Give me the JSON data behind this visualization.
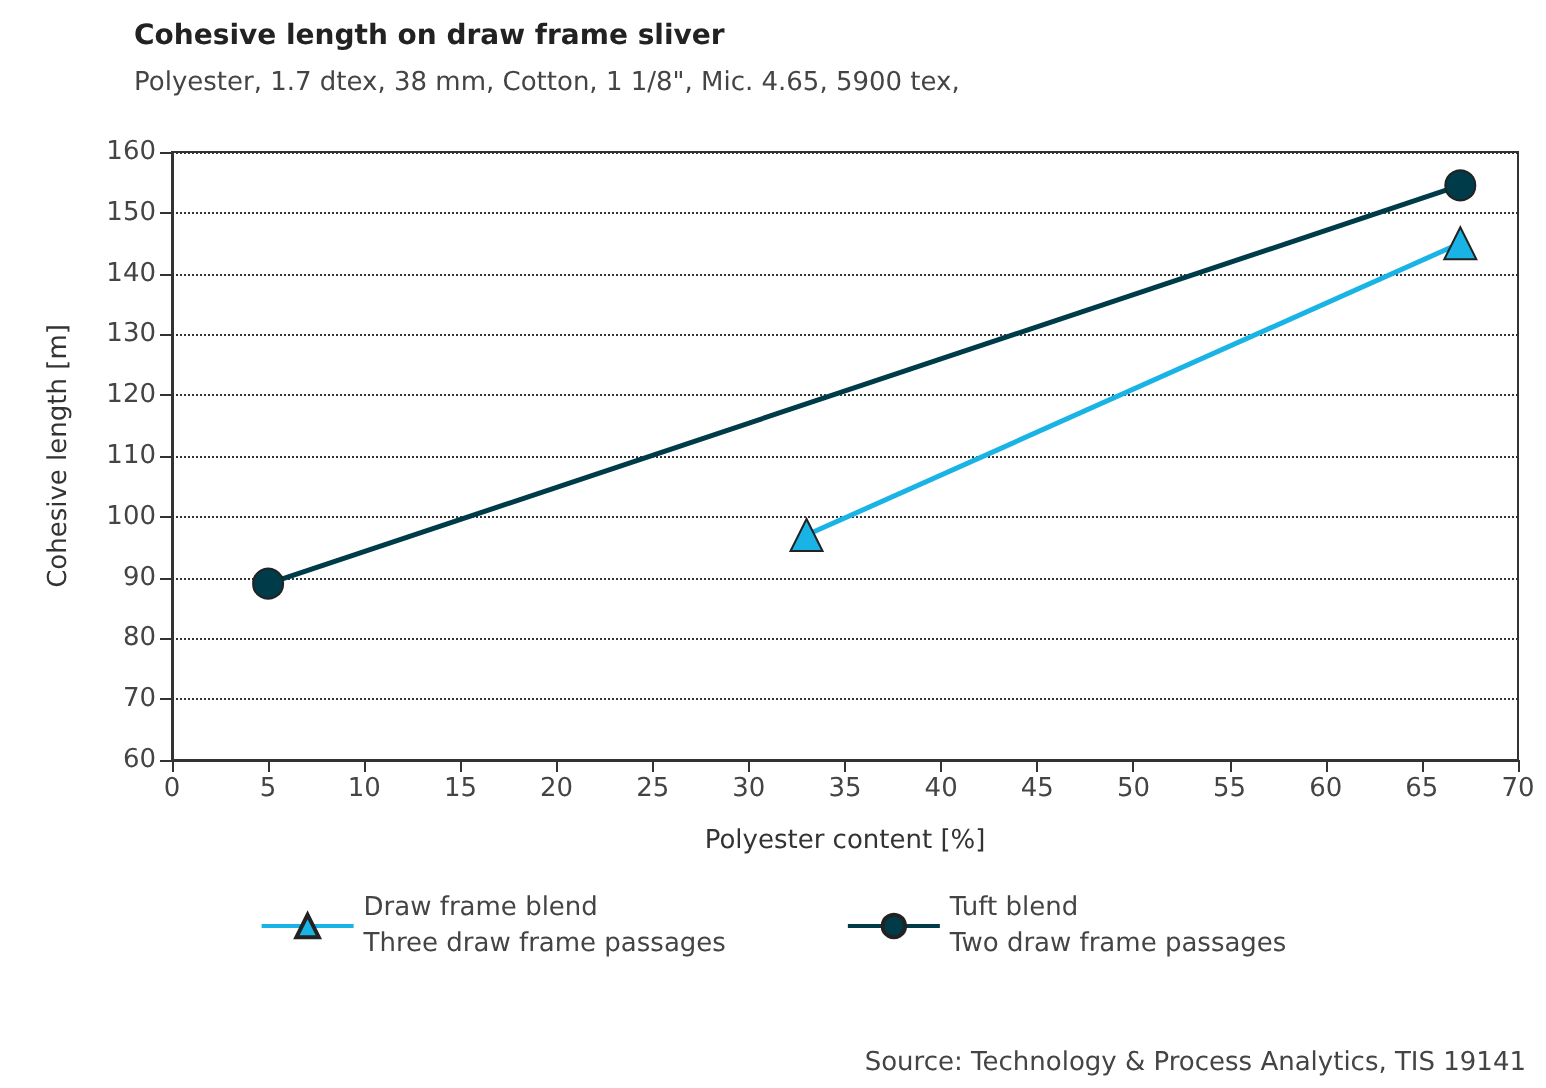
{
  "chart_data": {
    "type": "line",
    "title": "Cohesive length on draw frame sliver",
    "subtitle": "Polyester, 1.7 dtex, 38 mm, Cotton, 1 1/8\", Mic. 4.65, 5900 tex,",
    "xlabel": "Polyester content [%]",
    "ylabel": "Cohesive length [m]",
    "series": [
      {
        "name": "Draw frame blend\nThree draw frame passages",
        "color": "#1ab3e6",
        "marker": "triangle",
        "x": [
          33,
          67
        ],
        "values": [
          97,
          145
        ]
      },
      {
        "name": "Tuft blend\nTwo draw frame passages",
        "color": "#003b4a",
        "marker": "circle",
        "x": [
          5,
          67
        ],
        "values": [
          89,
          154.5
        ]
      }
    ],
    "xlim": [
      0,
      70
    ],
    "xticks": [
      0,
      5,
      10,
      15,
      20,
      25,
      30,
      35,
      40,
      45,
      50,
      55,
      60,
      65,
      70
    ],
    "ylim": [
      60,
      160
    ],
    "yticks": [
      60,
      70,
      80,
      90,
      100,
      110,
      120,
      130,
      140,
      150,
      160
    ],
    "grid": "y",
    "legend": "bottom",
    "line_style": "solid",
    "annotations": [
      "Source: Technology & Process Analytics, TIS 19141"
    ]
  }
}
